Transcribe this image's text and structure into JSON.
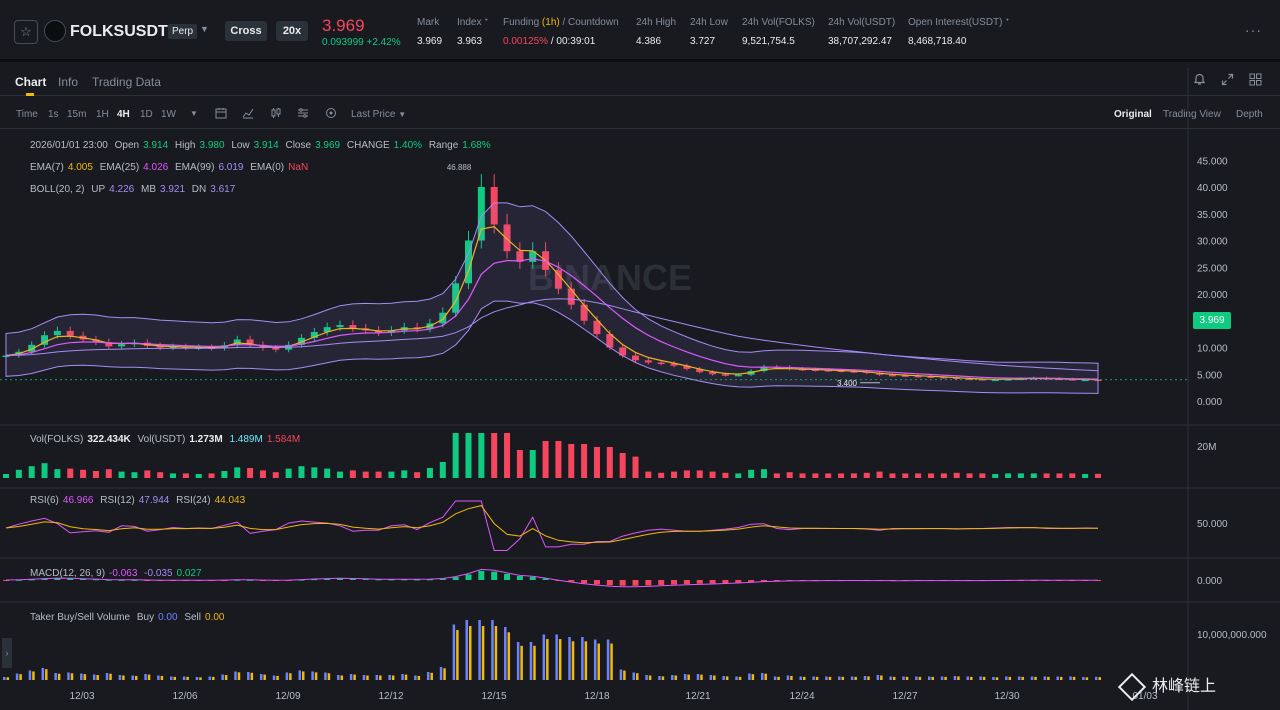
{
  "header": {
    "symbol": "FOLKSUSDT",
    "contract": "Perp",
    "margin_mode": "Cross",
    "leverage": "20x",
    "last_price": "3.969",
    "change_abs": "0.093999",
    "change_pct": "+2.42%",
    "stats": [
      {
        "label": "Mark",
        "value": "3.969"
      },
      {
        "label": "Index",
        "value": "3.963"
      },
      {
        "label": "24h High",
        "value": "4.386"
      },
      {
        "label": "24h Low",
        "value": "3.727"
      },
      {
        "label": "24h Vol(FOLKS)",
        "value": "9,521,754.5"
      },
      {
        "label": "24h Vol(USDT)",
        "value": "38,707,292.47"
      },
      {
        "label": "Open Interest(USDT)",
        "value": "8,468,718.40"
      }
    ],
    "funding": {
      "label_pre": "Funding ",
      "label_hl": "(1h)",
      "label_post": " / Countdown",
      "rate": "0.00125%",
      "countdown": " / 00:39:01"
    }
  },
  "tabs": [
    "Chart",
    "Info",
    "Trading Data"
  ],
  "toolbar": {
    "time_label": "Time",
    "intervals": [
      "1s",
      "15m",
      "1H",
      "4H",
      "1D",
      "1W"
    ],
    "active_interval": "4H",
    "price_type": "Last Price",
    "views": [
      "Original",
      "Trading View",
      "Depth"
    ]
  },
  "ohlc": {
    "datetime": "2026/01/01 23:00",
    "open_label": "Open",
    "open": "3.914",
    "high_label": "High",
    "high": "3.980",
    "low_label": "Low",
    "low": "3.914",
    "close_label": "Close",
    "close": "3.969",
    "change_label": "CHANGE",
    "change": "1.40%",
    "range_label": "Range",
    "range": "1.68%"
  },
  "ema": {
    "ema7_label": "EMA(7)",
    "ema7": "4.005",
    "ema25_label": "EMA(25)",
    "ema25": "4.026",
    "ema99_label": "EMA(99)",
    "ema99": "6.019",
    "ema0_label": "EMA(0)",
    "ema0": "NaN"
  },
  "boll": {
    "label": "BOLL(20, 2)",
    "up_label": "UP",
    "up": "4.226",
    "mb_label": "MB",
    "mb": "3.921",
    "dn_label": "DN",
    "dn": "3.617"
  },
  "vol": {
    "label": "Vol(FOLKS)",
    "folks": "322.434K",
    "usdt_label": "Vol(USDT)",
    "usdt1": "1.273M",
    "usdt2": "1.489M",
    "usdt3": "1.584M"
  },
  "rsi": {
    "rsi6_label": "RSI(6)",
    "rsi6": "46.966",
    "rsi12_label": "RSI(12)",
    "rsi12": "47.944",
    "rsi24_label": "RSI(24)",
    "rsi24": "44.043"
  },
  "macd": {
    "label": "MACD(12, 26, 9)",
    "v1": "-0.063",
    "v2": "-0.035",
    "v3": "0.027"
  },
  "taker": {
    "label": "Taker Buy/Sell Volume",
    "buy_label": "Buy",
    "buy": "0.00",
    "sell_label": "Sell",
    "sell": "0.00"
  },
  "price_axis": [
    "45.000",
    "40.000",
    "35.000",
    "30.000",
    "25.000",
    "20.000",
    "15.000",
    "10.000",
    "5.000",
    "0.000"
  ],
  "current_price_tag": "3.969",
  "high_marker": "46.888",
  "low_marker": "3.400",
  "vol_axis": "20M",
  "rsi_axis": "50.000",
  "macd_axis": "0.000",
  "taker_axis": "10,000,000.000",
  "date_axis": [
    "12/03",
    "12/06",
    "12/09",
    "12/12",
    "12/15",
    "12/18",
    "12/21",
    "12/24",
    "12/27",
    "12/30",
    "01/03"
  ],
  "watermark": "BINANCE",
  "channel_mark": "林峰链上",
  "colors": {
    "up": "#0ecb81",
    "down": "#f6465d",
    "accent": "#f0b90b",
    "boll": "#a68cf5",
    "ema7": "#f0b90b",
    "ema25": "#e056fd"
  },
  "chart_data": {
    "type": "candlestick",
    "interval": "4H",
    "close_series": [
      8.5,
      9.2,
      10.5,
      12.3,
      13.1,
      12.2,
      11.5,
      11.0,
      10.2,
      10.6,
      10.9,
      10.3,
      10.0,
      10.1,
      10.0,
      10.0,
      9.9,
      10.4,
      11.5,
      10.5,
      9.9,
      9.6,
      10.5,
      11.8,
      12.9,
      13.8,
      14.2,
      13.6,
      13.2,
      12.8,
      13.2,
      13.8,
      13.5,
      14.5,
      16.5,
      22.0,
      30.0,
      40.0,
      33.0,
      28.0,
      26.0,
      28.0,
      24.5,
      21.0,
      18.0,
      15.0,
      12.5,
      10.0,
      8.5,
      7.6,
      7.2,
      7.0,
      6.6,
      6.0,
      5.4,
      5.0,
      4.8,
      4.9,
      5.6,
      6.4,
      6.3,
      6.0,
      5.9,
      5.8,
      5.7,
      5.6,
      5.5,
      5.3,
      4.9,
      4.8,
      4.7,
      4.6,
      4.5,
      4.4,
      4.2,
      4.1,
      4.0,
      4.0,
      4.1,
      4.2,
      4.3,
      4.2,
      4.1,
      4.0,
      4.0,
      3.969
    ]
  }
}
